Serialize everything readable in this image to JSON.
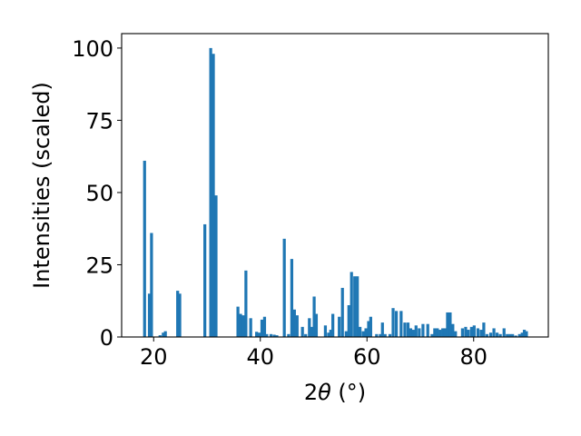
{
  "chart_data": {
    "type": "bar",
    "xlabel_main": "2",
    "xlabel_theta": "θ",
    "xlabel_unit": " (°)",
    "ylabel": "Intensities (scaled)",
    "xlim": [
      14,
      94
    ],
    "ylim": [
      0,
      105
    ],
    "xticks": [
      20,
      40,
      60,
      80
    ],
    "yticks": [
      0,
      25,
      50,
      75,
      100
    ],
    "bar_width": 0.55,
    "color": "#1f77b4",
    "x": [
      18.3,
      19.2,
      19.6,
      21.2,
      21.8,
      22.2,
      24.5,
      24.9,
      29.6,
      30.7,
      31.2,
      31.7,
      35.8,
      36.3,
      36.8,
      37.3,
      38.2,
      39.3,
      39.8,
      40.3,
      40.8,
      41.2,
      42.0,
      42.6,
      43.1,
      44.5,
      45.3,
      45.9,
      46.4,
      46.9,
      47.9,
      48.5,
      49.2,
      49.6,
      50.1,
      50.5,
      52.2,
      52.8,
      53.2,
      53.6,
      54.8,
      55.4,
      56.1,
      56.6,
      57.1,
      57.7,
      58.2,
      58.7,
      59.3,
      59.8,
      60.3,
      60.7,
      61.8,
      62.5,
      62.9,
      63.4,
      64.3,
      64.9,
      65.5,
      66.4,
      67.1,
      67.7,
      68.2,
      68.7,
      69.2,
      69.8,
      70.5,
      71.4,
      72.2,
      72.7,
      73.2,
      73.7,
      74.2,
      74.6,
      75.1,
      75.6,
      76.1,
      76.6,
      77.9,
      78.5,
      79.0,
      79.6,
      80.1,
      80.8,
      81.4,
      81.9,
      82.5,
      83.2,
      83.8,
      84.4,
      85.0,
      85.7,
      86.3,
      86.8,
      87.3,
      87.9,
      88.6,
      89.1,
      89.5,
      89.9
    ],
    "values": [
      61,
      15,
      36,
      0.6,
      1.5,
      2,
      16,
      15,
      39,
      100,
      98,
      49,
      10.5,
      8,
      7.5,
      23,
      6.5,
      1.8,
      1.5,
      6,
      7,
      1,
      1,
      0.8,
      0.6,
      34,
      1,
      27,
      9.5,
      7.5,
      3.5,
      1,
      6.5,
      3.5,
      14,
      8,
      4,
      1.5,
      2.5,
      8,
      7,
      17,
      2,
      11,
      22.5,
      21,
      21,
      3.5,
      2,
      3,
      5.5,
      7,
      1,
      1,
      5,
      1,
      1,
      10,
      9,
      9,
      5,
      5,
      3,
      2.5,
      4,
      3,
      4.5,
      4.5,
      1,
      3,
      3,
      2.5,
      3,
      3,
      8.5,
      8.5,
      4.5,
      2,
      3,
      3.5,
      2.5,
      3.5,
      4,
      3,
      2.5,
      5,
      1,
      1.5,
      3,
      1.5,
      1,
      3,
      1,
      1,
      1,
      0.5,
      1,
      1.5,
      2.5,
      2
    ]
  }
}
